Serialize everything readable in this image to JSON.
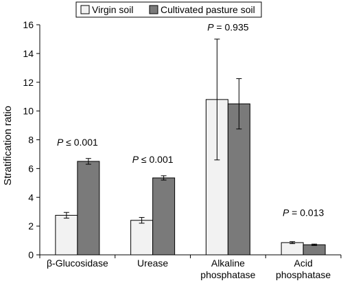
{
  "chart_data": {
    "type": "bar",
    "title": "",
    "xlabel": "",
    "ylabel": "Stratification ratio",
    "ylim": [
      0,
      16
    ],
    "yticks": [
      0,
      2,
      4,
      6,
      8,
      10,
      12,
      14,
      16
    ],
    "grid": false,
    "legend_position": "top",
    "categories": [
      [
        "β-Glucosidase"
      ],
      [
        "Urease"
      ],
      [
        "Alkaline",
        "phosphatase"
      ],
      [
        "Acid",
        "phosphatase"
      ]
    ],
    "series": [
      {
        "name": "Virgin soil",
        "color": "#f2f2f2",
        "values": [
          2.75,
          2.4,
          10.8,
          0.85
        ],
        "errors": [
          0.2,
          0.2,
          4.2,
          0.07
        ]
      },
      {
        "name": "Cultivated pasture soil",
        "color": "#7a7a7a",
        "values": [
          6.5,
          5.35,
          10.5,
          0.7
        ],
        "errors": [
          0.2,
          0.15,
          1.75,
          0.05
        ]
      }
    ],
    "annotations": [
      {
        "prefix": "P",
        "text": " ≤ 0.001",
        "category": 0,
        "y": 7.6
      },
      {
        "prefix": "P",
        "text": " ≤ 0.001",
        "category": 1,
        "y": 6.4
      },
      {
        "prefix": "P",
        "text": " = 0.935",
        "category": 2,
        "y": 15.6
      },
      {
        "prefix": "P",
        "text": " = 0.013",
        "category": 3,
        "y": 2.7
      }
    ]
  }
}
